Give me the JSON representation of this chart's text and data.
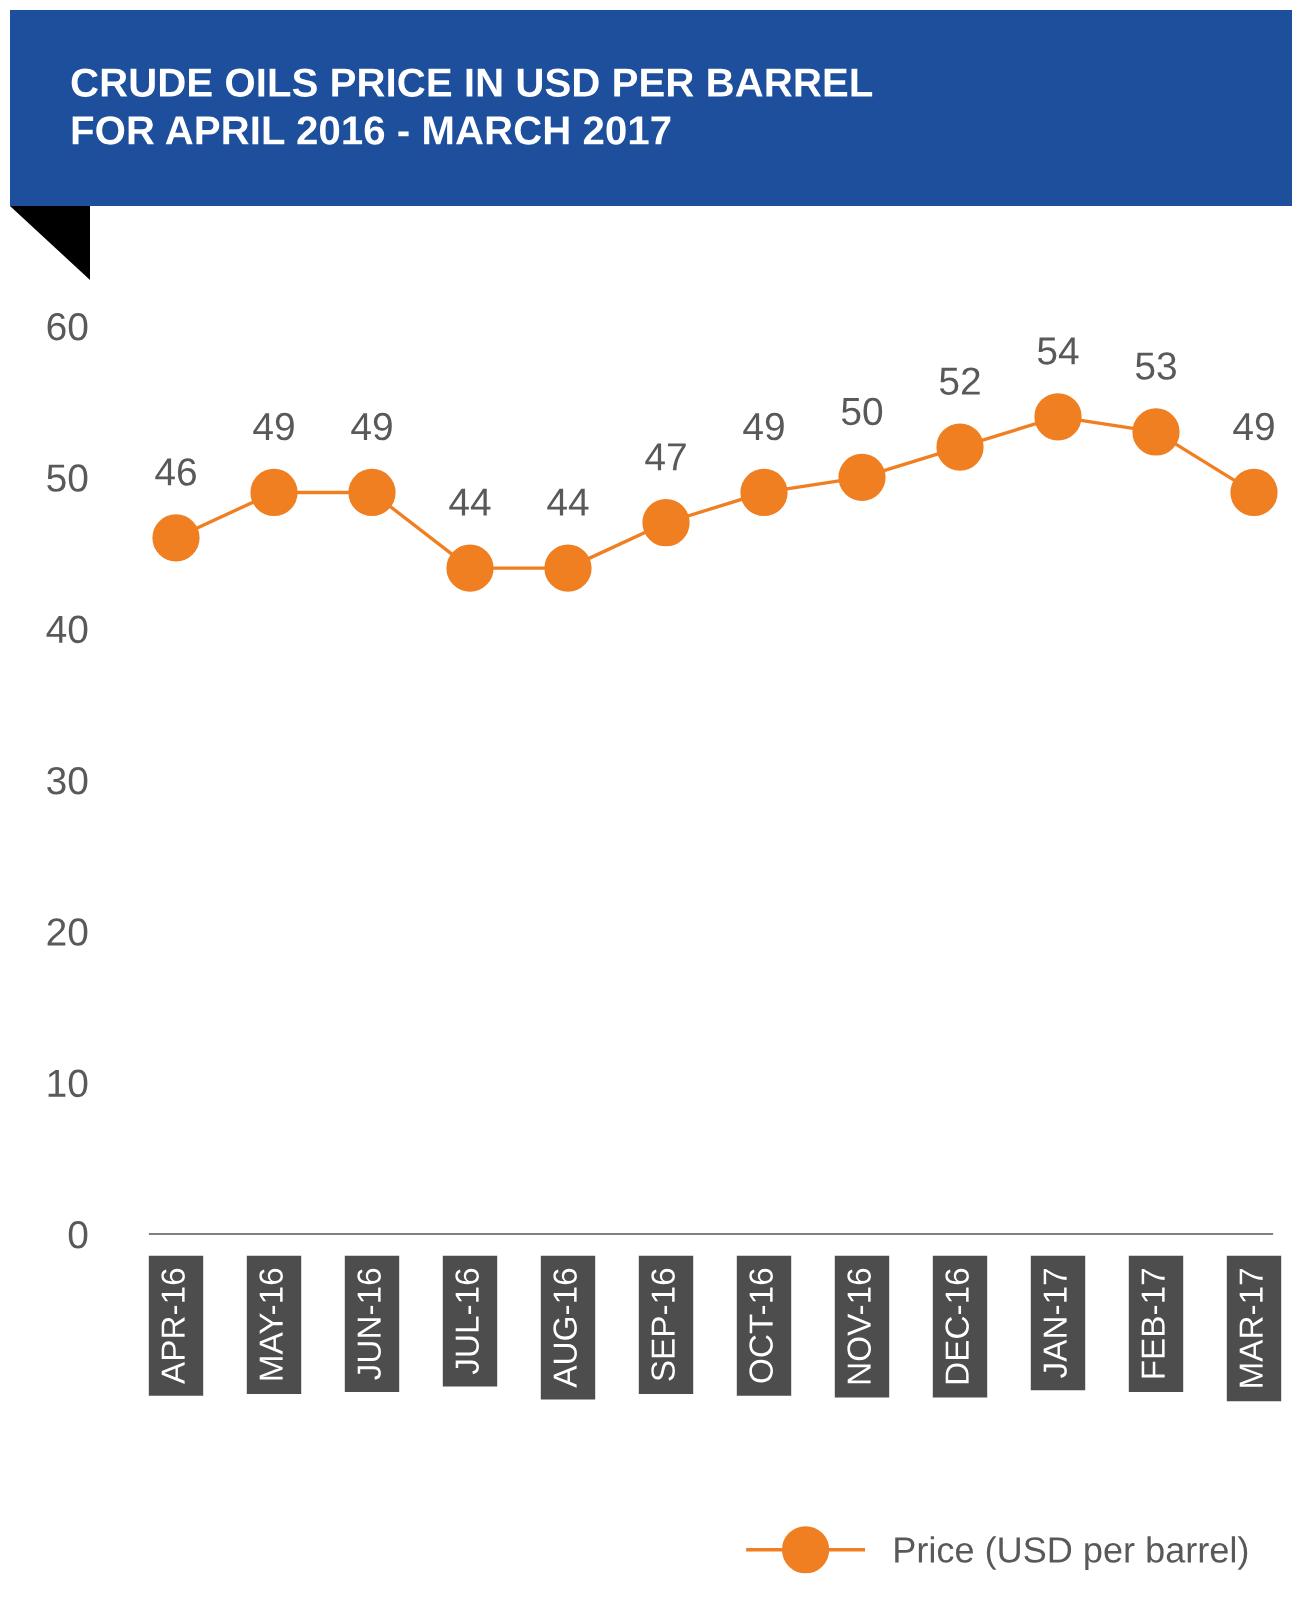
{
  "chart_data": {
    "type": "line",
    "title": "CRUDE OILS PRICE IN USD PER BARREL\nFOR APRIL 2016 - MARCH 2017",
    "categories": [
      "APR-16",
      "MAY-16",
      "JUN-16",
      "JUL-16",
      "AUG-16",
      "SEP-16",
      "OCT-16",
      "NOV-16",
      "DEC-16",
      "JAN-17",
      "FEB-17",
      "MAR-17"
    ],
    "series": [
      {
        "name": "Price (USD per barrel)",
        "color": "#f07f22",
        "values": [
          46,
          49,
          49,
          44,
          44,
          47,
          49,
          50,
          52,
          54,
          53,
          49
        ]
      }
    ],
    "ylim": [
      0,
      60
    ],
    "yticks": [
      0,
      10,
      20,
      30,
      40,
      50,
      60
    ],
    "grid": false,
    "legend": "bottom right",
    "marker": "circle",
    "line_style": "solid",
    "data_labels": true
  }
}
